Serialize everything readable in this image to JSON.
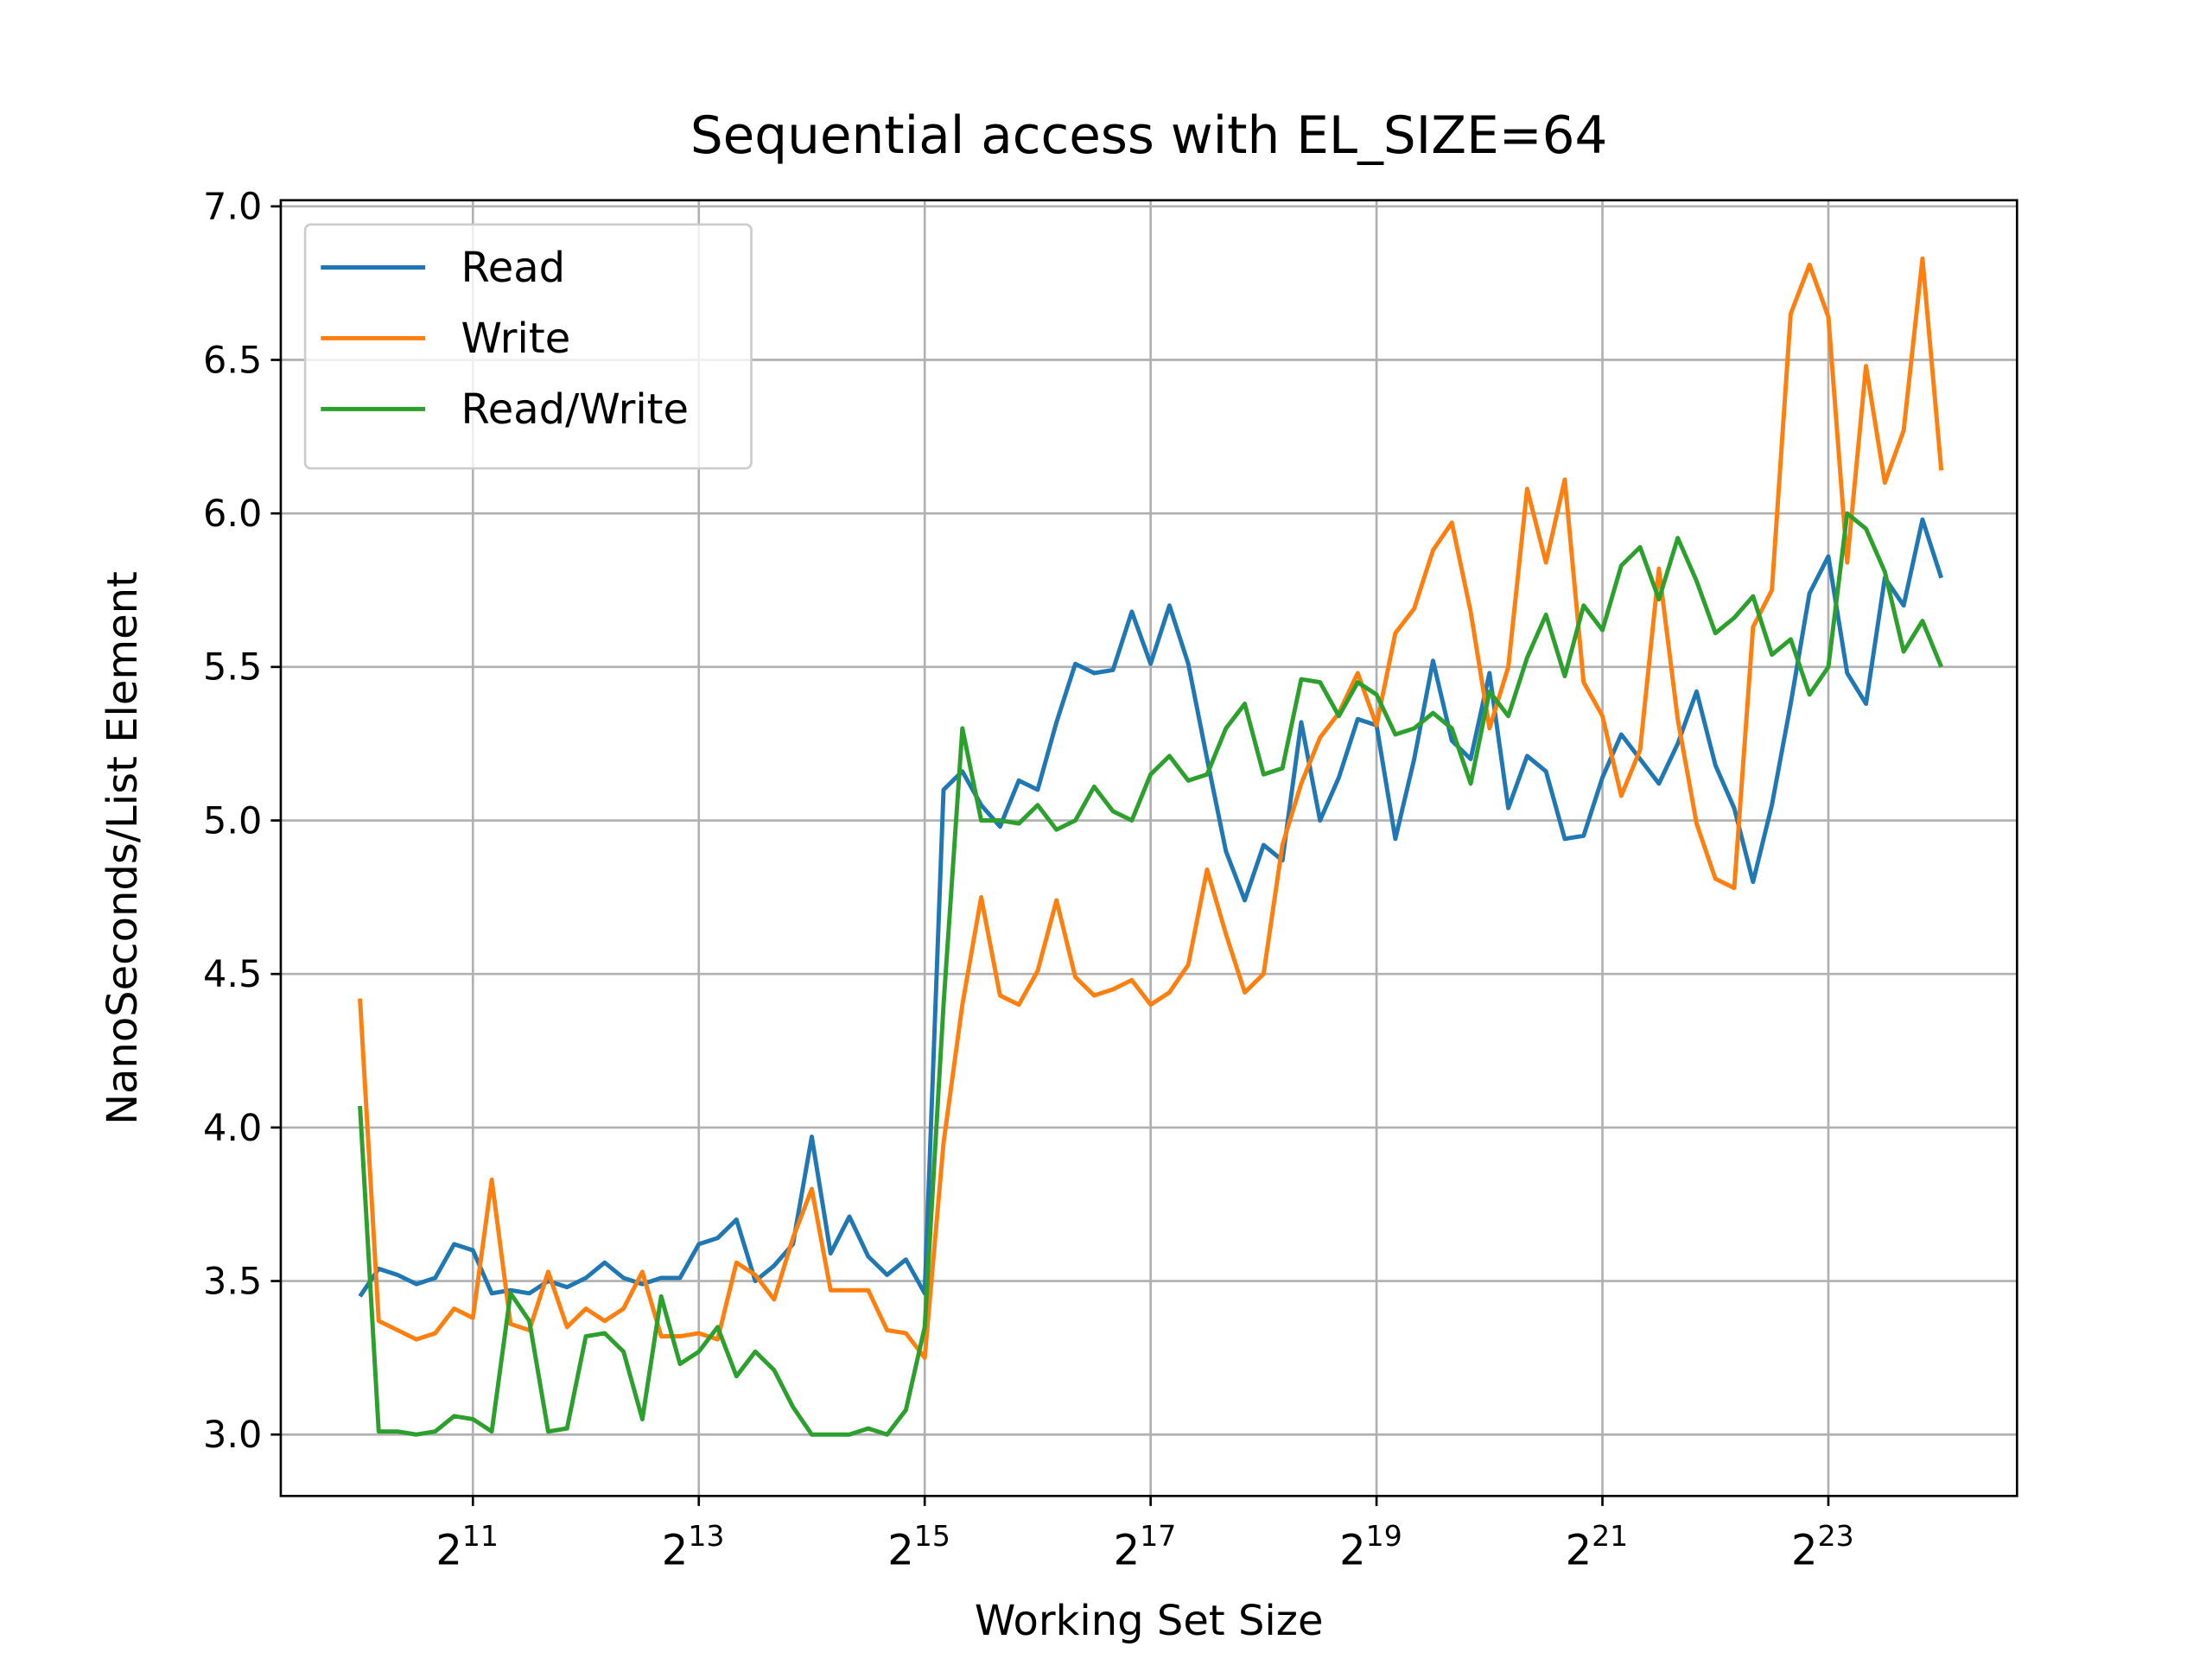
{
  "chart_data": {
    "type": "line",
    "title": "Sequential access with EL_SIZE=64",
    "xlabel": "Working Set Size",
    "ylabel": "NanoSeconds/List Element",
    "xscale": "log",
    "log_base": 2,
    "x": [
      1024,
      1149,
      1290,
      1448,
      1625,
      1825,
      2048,
      2299,
      2580,
      2896,
      3251,
      3649,
      4096,
      4598,
      5161,
      5793,
      6502,
      7298,
      8192,
      9195,
      10321,
      11585,
      13004,
      14596,
      16384,
      18390,
      20643,
      23170,
      26008,
      29193,
      32768,
      36781,
      41285,
      46341,
      52016,
      58386,
      65536,
      73562,
      82570,
      92682,
      104032,
      116772,
      131072,
      147123,
      165140,
      185364,
      208064,
      233544,
      262144,
      294247,
      330281,
      370728,
      416128,
      467088,
      524288,
      588493,
      660561,
      741455,
      832255,
      934175,
      1048576,
      1176987,
      1321122,
      1482910,
      1664511,
      1868350,
      2097152,
      2353973,
      2642245,
      2965821,
      3329021,
      3736700,
      4194304,
      4707947,
      5284491,
      5931642,
      6658043,
      7473400,
      8388608,
      9415894,
      10568983,
      11863283,
      13316085,
      14946800,
      16777216
    ],
    "series": [
      {
        "name": "Read",
        "color": "#1f77b4",
        "values": [
          3.45,
          3.54,
          3.52,
          3.49,
          3.51,
          3.62,
          3.6,
          3.46,
          3.47,
          3.46,
          3.5,
          3.48,
          3.51,
          3.56,
          3.51,
          3.49,
          3.51,
          3.51,
          3.62,
          3.64,
          3.7,
          3.5,
          3.55,
          3.62,
          3.97,
          3.59,
          3.71,
          3.58,
          3.52,
          3.57,
          3.46,
          5.1,
          5.16,
          5.05,
          4.98,
          5.13,
          5.1,
          5.32,
          5.51,
          5.48,
          5.49,
          5.68,
          5.51,
          5.7,
          5.51,
          5.2,
          4.9,
          4.74,
          4.92,
          4.87,
          5.32,
          5.0,
          5.14,
          5.33,
          5.31,
          4.94,
          5.2,
          5.52,
          5.26,
          5.2,
          5.48,
          5.04,
          5.21,
          5.16,
          4.94,
          4.95,
          5.14,
          5.28,
          5.2,
          5.12,
          5.25,
          5.42,
          5.18,
          5.04,
          4.8,
          5.05,
          5.38,
          5.74,
          5.86,
          5.48,
          5.38,
          5.79,
          5.7,
          5.98,
          5.79
        ]
      },
      {
        "name": "Write",
        "color": "#ff7f0e",
        "values": [
          4.42,
          3.37,
          3.34,
          3.31,
          3.33,
          3.41,
          3.38,
          3.83,
          3.36,
          3.34,
          3.53,
          3.35,
          3.41,
          3.37,
          3.41,
          3.53,
          3.32,
          3.32,
          3.33,
          3.31,
          3.56,
          3.52,
          3.44,
          3.64,
          3.8,
          3.47,
          3.47,
          3.47,
          3.34,
          3.33,
          3.25,
          3.95,
          4.4,
          4.75,
          4.43,
          4.4,
          4.51,
          4.74,
          4.49,
          4.43,
          4.45,
          4.48,
          4.4,
          4.44,
          4.53,
          4.84,
          4.63,
          4.44,
          4.5,
          4.92,
          5.12,
          5.27,
          5.35,
          5.48,
          5.31,
          5.61,
          5.69,
          5.88,
          5.97,
          5.68,
          5.3,
          5.5,
          6.08,
          5.84,
          6.11,
          5.45,
          5.34,
          5.08,
          5.23,
          5.82,
          5.33,
          4.99,
          4.81,
          4.78,
          5.63,
          5.75,
          6.65,
          6.81,
          6.64,
          5.84,
          6.48,
          6.1,
          6.27,
          6.83,
          6.14
        ]
      },
      {
        "name": "Read/Write",
        "color": "#2ca02c",
        "values": [
          4.07,
          3.01,
          3.01,
          3.0,
          3.01,
          3.06,
          3.05,
          3.01,
          3.46,
          3.37,
          3.01,
          3.02,
          3.32,
          3.33,
          3.27,
          3.05,
          3.45,
          3.23,
          3.27,
          3.35,
          3.19,
          3.27,
          3.21,
          3.09,
          3.0,
          3.0,
          3.0,
          3.02,
          3.0,
          3.08,
          3.35,
          4.4,
          5.3,
          5.0,
          5.0,
          4.99,
          5.05,
          4.97,
          5.0,
          5.11,
          5.03,
          5.0,
          5.15,
          5.21,
          5.13,
          5.15,
          5.3,
          5.38,
          5.15,
          5.17,
          5.46,
          5.45,
          5.34,
          5.45,
          5.41,
          5.28,
          5.3,
          5.35,
          5.3,
          5.12,
          5.42,
          5.34,
          5.53,
          5.67,
          5.47,
          5.7,
          5.62,
          5.83,
          5.89,
          5.72,
          5.92,
          5.78,
          5.61,
          5.66,
          5.73,
          5.54,
          5.59,
          5.41,
          5.5,
          6.0,
          5.95,
          5.81,
          5.55,
          5.65,
          5.5
        ]
      }
    ],
    "xlim": [
      630,
      26700000
    ],
    "xticks": [
      {
        "value": 2048,
        "base": "2",
        "exponent": "11"
      },
      {
        "value": 8192,
        "base": "2",
        "exponent": "13"
      },
      {
        "value": 32768,
        "base": "2",
        "exponent": "15"
      },
      {
        "value": 131072,
        "base": "2",
        "exponent": "17"
      },
      {
        "value": 524288,
        "base": "2",
        "exponent": "19"
      },
      {
        "value": 2097152,
        "base": "2",
        "exponent": "21"
      },
      {
        "value": 8388608,
        "base": "2",
        "exponent": "23"
      }
    ],
    "ylim": [
      2.8,
      7.02
    ],
    "yticks": [
      {
        "value": 3,
        "label": "3.0"
      },
      {
        "value": 3.5,
        "label": "3.5"
      },
      {
        "value": 4,
        "label": "4.0"
      },
      {
        "value": 4.5,
        "label": "4.5"
      },
      {
        "value": 5,
        "label": "5.0"
      },
      {
        "value": 5.5,
        "label": "5.5"
      },
      {
        "value": 6,
        "label": "6.0"
      },
      {
        "value": 6.5,
        "label": "6.5"
      },
      {
        "value": 7,
        "label": "7.0"
      }
    ],
    "grid": true,
    "legend": "upper left"
  }
}
